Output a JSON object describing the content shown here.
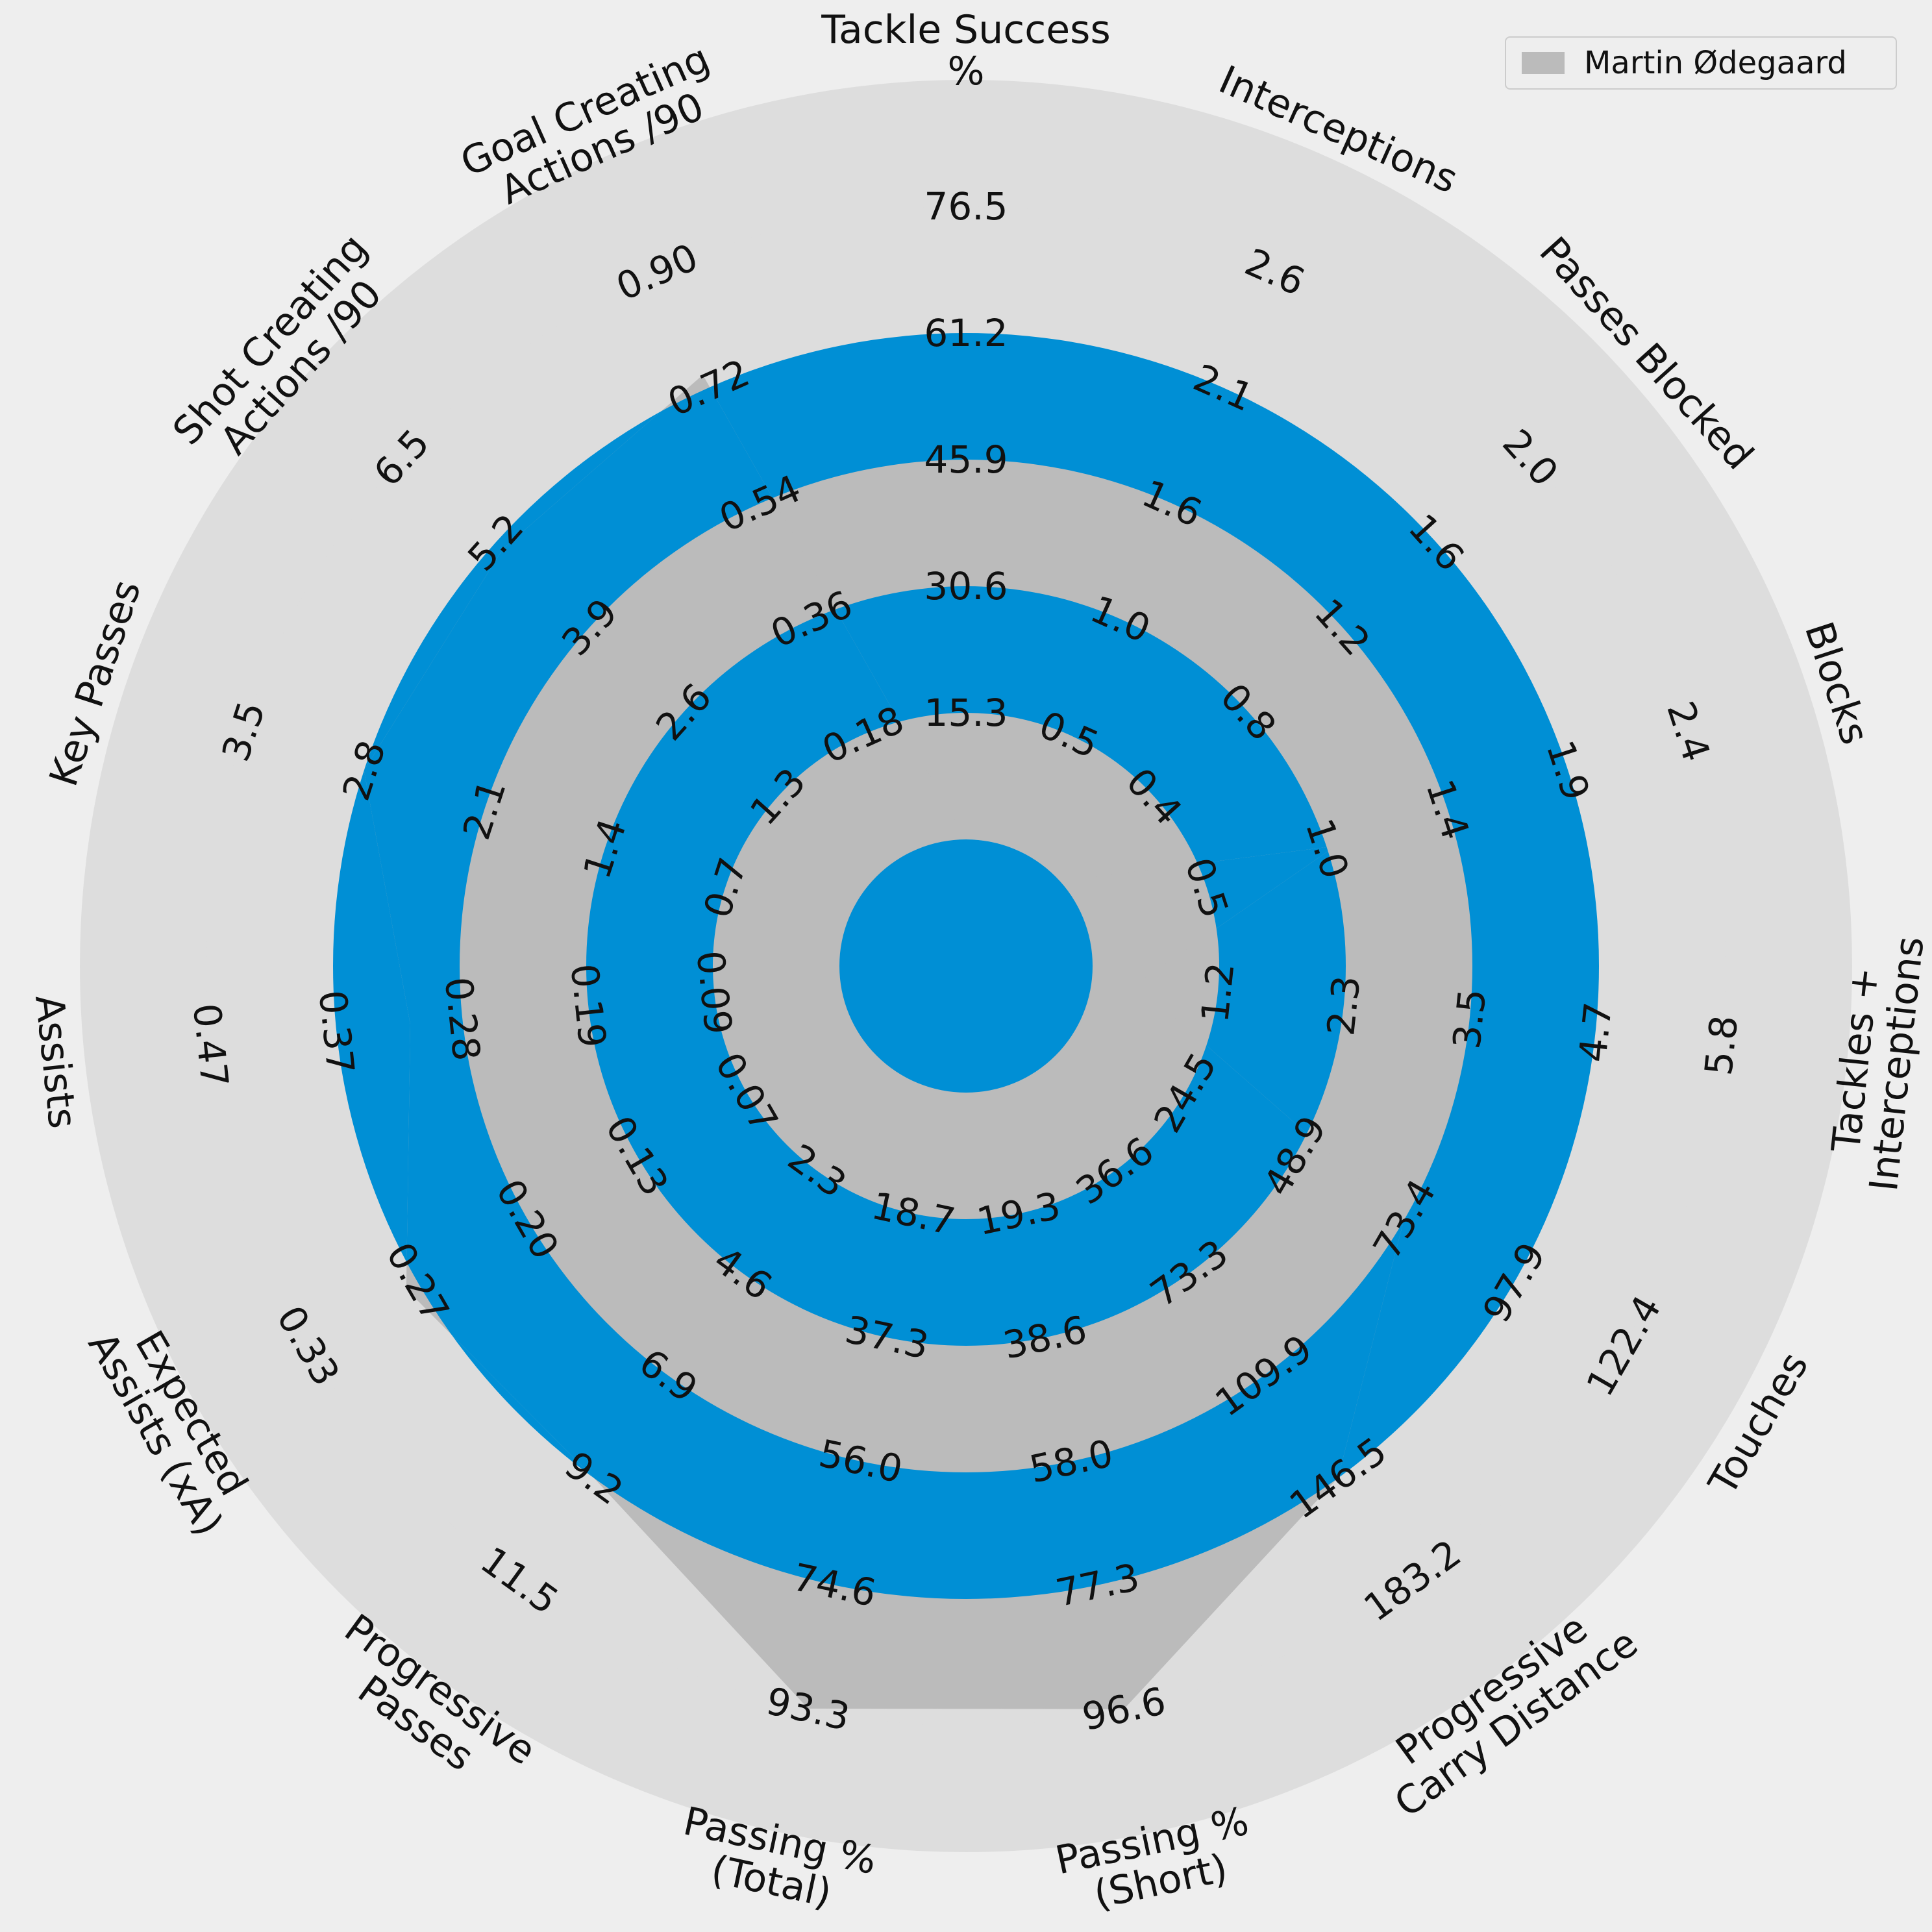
{
  "chart_data": {
    "type": "radar",
    "title": "",
    "legend": {
      "position": "top-right",
      "entries": [
        "Martin Ødegaard"
      ]
    },
    "series": [
      {
        "name": "Martin Ødegaard",
        "values": [
          null,
          null,
          null,
          1.0,
          0.5,
          73.4,
          146.5,
          96.6,
          93.3,
          9.2,
          0.27,
          0.32,
          2.8,
          5.1,
          0.74
        ]
      }
    ],
    "colors": {
      "background": "#eeeeee",
      "ring_light": "#dddddd",
      "ring_mid": "#bbbbbb",
      "ring_blue": "#008fd5",
      "player": "#bbbbbb",
      "center": "#008fd5",
      "text": "#111111"
    },
    "params": [
      {
        "label": "Tackle Success\n%",
        "ticks": [
          "15.3",
          "30.6",
          "45.9",
          "61.2",
          "76.5"
        ]
      },
      {
        "label": "Interceptions",
        "ticks": [
          "0.5",
          "1.0",
          "1.6",
          "2.1",
          "2.6"
        ]
      },
      {
        "label": "Passes Blocked",
        "ticks": [
          "0.4",
          "0.8",
          "1.2",
          "1.6",
          "2.0"
        ]
      },
      {
        "label": "Blocks",
        "ticks": [
          "0.5",
          "1.0",
          "1.4",
          "1.9",
          "2.4"
        ]
      },
      {
        "label": "Tackles +\nInterceptions",
        "ticks": [
          "1.2",
          "2.3",
          "3.5",
          "4.7",
          "5.8"
        ]
      },
      {
        "label": "Touches",
        "ticks": [
          "24.5",
          "48.9",
          "73.4",
          "97.9",
          "122.4"
        ]
      },
      {
        "label": "Progressive\nCarry Distance",
        "ticks": [
          "36.6",
          "73.3",
          "109.9",
          "146.5",
          "183.2"
        ]
      },
      {
        "label": "Passing %\n(Short)",
        "ticks": [
          "19.3",
          "38.6",
          "58.0",
          "77.3",
          "96.6"
        ]
      },
      {
        "label": "Passing %\n(Total)",
        "ticks": [
          "18.7",
          "37.3",
          "56.0",
          "74.6",
          "93.3"
        ]
      },
      {
        "label": "Progressive\nPasses",
        "ticks": [
          "2.3",
          "4.6",
          "6.9",
          "9.2",
          "11.5"
        ]
      },
      {
        "label": "Expected\nAssists (xA)",
        "ticks": [
          "0.07",
          "0.13",
          "0.20",
          "0.27",
          "0.33"
        ]
      },
      {
        "label": "Assists",
        "ticks": [
          "0.09",
          "0.19",
          "0.28",
          "0.37",
          "0.47"
        ]
      },
      {
        "label": "Key Passes",
        "ticks": [
          "0.7",
          "1.4",
          "2.1",
          "2.8",
          "3.5"
        ]
      },
      {
        "label": "Shot Creating\nActions /90",
        "ticks": [
          "1.3",
          "2.6",
          "3.9",
          "5.2",
          "6.5"
        ]
      },
      {
        "label": "Goal Creating\nActions /90",
        "ticks": [
          "0.18",
          "0.36",
          "0.54",
          "0.72",
          "0.90"
        ]
      }
    ]
  }
}
